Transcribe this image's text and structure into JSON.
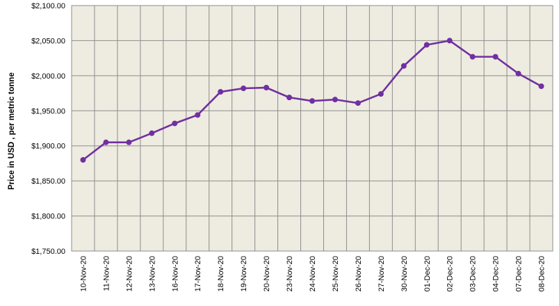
{
  "chart_data": {
    "type": "line",
    "title": "",
    "xlabel": "",
    "ylabel": "Price in USD , per metric tonne",
    "categories": [
      "10-Nov-20",
      "11-Nov-20",
      "12-Nov-20",
      "13-Nov-20",
      "16-Nov-20",
      "17-Nov-20",
      "18-Nov-20",
      "19-Nov-20",
      "20-Nov-20",
      "23-Nov-20",
      "24-Nov-20",
      "25-Nov-20",
      "26-Nov-20",
      "27-Nov-20",
      "30-Nov-20",
      "01-Dec-20",
      "02-Dec-20",
      "03-Dec-20",
      "04-Dec-20",
      "07-Dec-20",
      "08-Dec-20"
    ],
    "series": [
      {
        "values": [
          1880,
          1905,
          1905,
          1918,
          1932,
          1944,
          1977,
          1982,
          1983,
          1969,
          1964,
          1966,
          1961,
          1974,
          2014,
          2044,
          2050,
          2027,
          2027,
          2003,
          1985
        ]
      }
    ],
    "ylim": [
      1750,
      2100
    ],
    "yticks": [
      1750,
      1800,
      1850,
      1900,
      1950,
      2000,
      2050,
      2100
    ],
    "ytick_labels": [
      "$1,750.00",
      "$1,800.00",
      "$1,850.00",
      "$1,900.00",
      "$1,950.00",
      "$2,000.00",
      "$2,050.00",
      "$2,100.00"
    ],
    "grid": true,
    "legend": "none",
    "colors": {
      "line": "#7030A0",
      "plot_background": "#EEEBE0",
      "grid": "#8C8C8C"
    }
  }
}
